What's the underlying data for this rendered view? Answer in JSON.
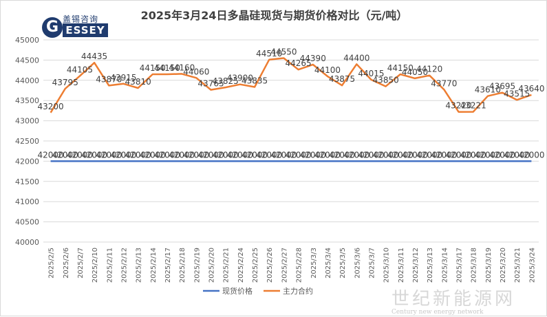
{
  "title": "2025年3月24日多晶硅现货与期货价格对比（元/吨）",
  "logo": {
    "cn_text": "盖锡咨询",
    "en_text": "GESSEY"
  },
  "watermark": {
    "cn_text": "世纪新能源网",
    "en_text": "Century new energy network"
  },
  "colors": {
    "spot": "#4472c4",
    "futures": "#ed7d31",
    "grid": "#d9d9d9",
    "axis_text": "#595959"
  },
  "chart_data": {
    "type": "line",
    "categories": [
      "2025/2/5",
      "2025/2/6",
      "2025/2/7",
      "2025/2/10",
      "2025/2/11",
      "2025/2/12",
      "2025/2/13",
      "2025/2/14",
      "2025/2/17",
      "2025/2/18",
      "2025/2/19",
      "2025/2/20",
      "2025/2/21",
      "2025/2/24",
      "2025/2/25",
      "2025/2/26",
      "2025/2/27",
      "2025/2/28",
      "2025/3/3",
      "2025/3/4",
      "2025/3/5",
      "2025/3/6",
      "2025/3/7",
      "2025/3/10",
      "2025/3/11",
      "2025/3/12",
      "2025/3/13",
      "2025/3/14",
      "2025/3/17",
      "2025/3/18",
      "2025/3/19",
      "2025/3/20",
      "2025/3/21",
      "2025/3/24"
    ],
    "series": [
      {
        "name": "现货价格",
        "values": [
          42000,
          42000,
          42000,
          42000,
          42000,
          42000,
          42000,
          42000,
          42000,
          42000,
          42000,
          42000,
          42000,
          42000,
          42000,
          42000,
          42000,
          42000,
          42000,
          42000,
          42000,
          42000,
          42000,
          42000,
          42000,
          42000,
          42000,
          42000,
          42000,
          42000,
          42000,
          42000,
          42000,
          42000
        ]
      },
      {
        "name": "主力合约",
        "values": [
          43200,
          43795,
          44105,
          44435,
          43870,
          43915,
          43810,
          44150,
          44150,
          44160,
          44060,
          43765,
          43825,
          43900,
          43835,
          44510,
          44550,
          44265,
          44390,
          44100,
          43875,
          44400,
          44015,
          43850,
          44150,
          44050,
          44120,
          43770,
          43220,
          43221,
          43610,
          43695,
          43515,
          43640
        ]
      }
    ],
    "ylim": [
      40000,
      45000
    ],
    "yticks": [
      "40000",
      "40500",
      "41000",
      "41500",
      "42000",
      "42500",
      "43000",
      "43500",
      "44000",
      "44500",
      "45000"
    ],
    "grid": true,
    "legend": "bottom"
  }
}
